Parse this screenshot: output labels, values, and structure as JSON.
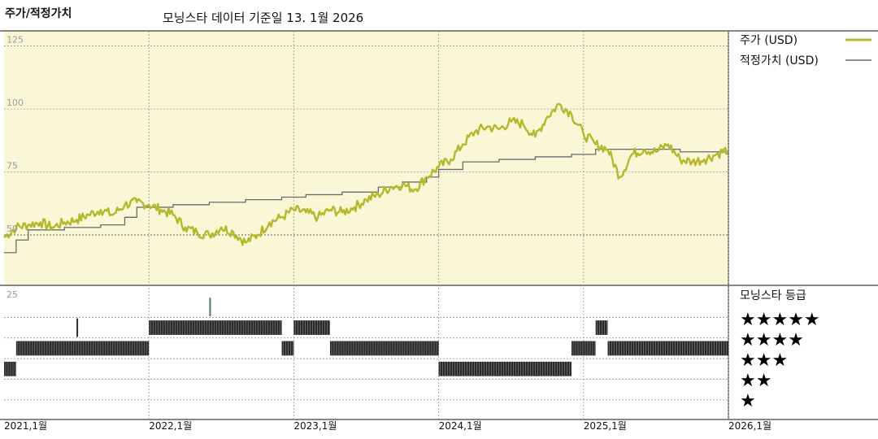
{
  "header": {
    "title": "주가/적정가치",
    "subtitle": "모닝스타 데이터 기준일 13. 1월 2026"
  },
  "colors": {
    "price": "#b5b82d",
    "fair": "#6b6b6b",
    "plot_bg": "#faf7d7",
    "rating_bar": "#2a2a2a",
    "rating_spike": "#4a7a6a"
  },
  "legend": {
    "price_label": "주가 (USD)",
    "fair_label": "적정가치 (USD)",
    "rating_title": "모닝스타 등급"
  },
  "chart_data": [
    {
      "type": "line",
      "ylim": [
        30,
        131
      ],
      "yticks": [
        50,
        75,
        100,
        125
      ],
      "xticks": [
        "2021,1월",
        "2022,1월",
        "2023,1월",
        "2024,1월",
        "2025,1월",
        "2026,1월"
      ],
      "x_range": [
        "2021-01",
        "2026-01"
      ],
      "series": [
        {
          "name": "주가 (USD)",
          "points": [
            [
              "2021-01",
              49
            ],
            [
              "2021-02",
              53
            ],
            [
              "2021-03",
              54
            ],
            [
              "2021-04",
              55
            ],
            [
              "2021-05",
              53
            ],
            [
              "2021-06",
              55
            ],
            [
              "2021-07",
              56
            ],
            [
              "2021-08",
              58
            ],
            [
              "2021-09",
              60
            ],
            [
              "2021-10",
              58
            ],
            [
              "2021-11",
              62
            ],
            [
              "2021-12",
              63
            ],
            [
              "2022-01",
              62
            ],
            [
              "2022-02",
              60
            ],
            [
              "2022-03",
              58
            ],
            [
              "2022-04",
              53
            ],
            [
              "2022-05",
              51
            ],
            [
              "2022-06",
              50
            ],
            [
              "2022-07",
              53
            ],
            [
              "2022-08",
              51
            ],
            [
              "2022-09",
              47
            ],
            [
              "2022-10",
              50
            ],
            [
              "2022-11",
              55
            ],
            [
              "2022-12",
              57
            ],
            [
              "2023-01",
              60
            ],
            [
              "2023-02",
              59
            ],
            [
              "2023-03",
              57
            ],
            [
              "2023-04",
              60
            ],
            [
              "2023-05",
              59
            ],
            [
              "2023-06",
              61
            ],
            [
              "2023-07",
              64
            ],
            [
              "2023-08",
              66
            ],
            [
              "2023-09",
              69
            ],
            [
              "2023-10",
              70
            ],
            [
              "2023-11",
              68
            ],
            [
              "2023-12",
              73
            ],
            [
              "2024-01",
              77
            ],
            [
              "2024-02",
              80
            ],
            [
              "2024-03",
              86
            ],
            [
              "2024-04",
              91
            ],
            [
              "2024-05",
              93
            ],
            [
              "2024-06",
              92
            ],
            [
              "2024-07",
              95
            ],
            [
              "2024-08",
              94
            ],
            [
              "2024-09",
              89
            ],
            [
              "2024-10",
              97
            ],
            [
              "2024-11",
              102
            ],
            [
              "2024-12",
              98
            ],
            [
              "2025-01",
              90
            ],
            [
              "2025-02",
              86
            ],
            [
              "2025-03",
              84
            ],
            [
              "2025-04",
              73
            ],
            [
              "2025-05",
              82
            ],
            [
              "2025-06",
              84
            ],
            [
              "2025-07",
              83
            ],
            [
              "2025-08",
              86
            ],
            [
              "2025-09",
              80
            ],
            [
              "2025-10",
              79
            ],
            [
              "2025-11",
              80
            ],
            [
              "2025-12",
              82
            ],
            [
              "2026-01",
              84
            ]
          ]
        },
        {
          "name": "적정가치 (USD)",
          "steps": [
            [
              "2021-01",
              43
            ],
            [
              "2021-02",
              48
            ],
            [
              "2021-03",
              52
            ],
            [
              "2021-06",
              53
            ],
            [
              "2021-09",
              54
            ],
            [
              "2021-11",
              57
            ],
            [
              "2021-12",
              61
            ],
            [
              "2022-03",
              62
            ],
            [
              "2022-06",
              63
            ],
            [
              "2022-09",
              64
            ],
            [
              "2022-12",
              65
            ],
            [
              "2023-02",
              66
            ],
            [
              "2023-05",
              67
            ],
            [
              "2023-08",
              69
            ],
            [
              "2023-10",
              71
            ],
            [
              "2023-12",
              73
            ],
            [
              "2024-01",
              76
            ],
            [
              "2024-03",
              79
            ],
            [
              "2024-06",
              80
            ],
            [
              "2024-09",
              81
            ],
            [
              "2024-12",
              82
            ],
            [
              "2025-02",
              84
            ],
            [
              "2025-06",
              84
            ],
            [
              "2025-09",
              83
            ],
            [
              "2026-01",
              83
            ]
          ]
        }
      ]
    },
    {
      "type": "heatmap",
      "title": "모닝스타 등급",
      "levels": [
        "★★★★★",
        "★★★★",
        "★★★",
        "★★",
        "★"
      ],
      "rating_axis_tick": 25,
      "segments": [
        {
          "rating": 2,
          "from": "2021-01",
          "to": "2021-02"
        },
        {
          "rating": 3,
          "from": "2021-02",
          "to": "2022-01"
        },
        {
          "rating": 4,
          "from": "2021-07",
          "to": "2021-07"
        },
        {
          "rating": 4,
          "from": "2022-01",
          "to": "2022-12"
        },
        {
          "rating": 5,
          "from": "2022-06",
          "to": "2022-06"
        },
        {
          "rating": 3,
          "from": "2022-12",
          "to": "2023-01"
        },
        {
          "rating": 4,
          "from": "2023-01",
          "to": "2023-04"
        },
        {
          "rating": 3,
          "from": "2023-04",
          "to": "2024-01"
        },
        {
          "rating": 2,
          "from": "2024-01",
          "to": "2024-12"
        },
        {
          "rating": 3,
          "from": "2024-12",
          "to": "2025-02"
        },
        {
          "rating": 4,
          "from": "2025-02",
          "to": "2025-03"
        },
        {
          "rating": 3,
          "from": "2025-03",
          "to": "2026-01"
        }
      ]
    }
  ]
}
